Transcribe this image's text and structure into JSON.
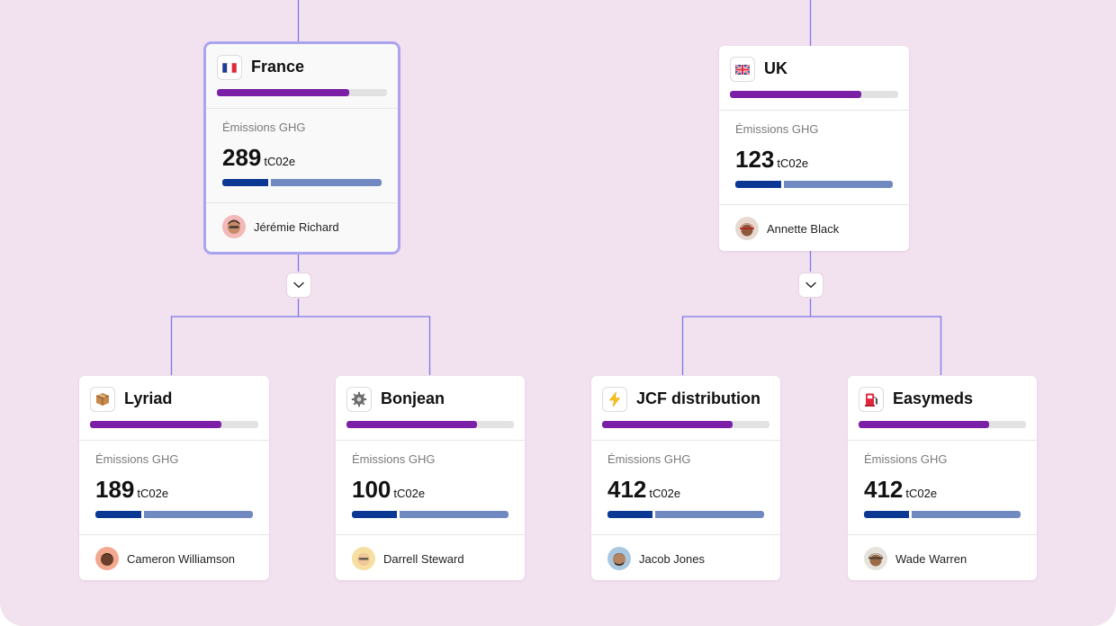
{
  "colors": {
    "background": "#f2e1ef",
    "connector": "#7b78e8",
    "progress_fill": "#7b1fa6",
    "progress_track": "#e2e2e2",
    "split_dark": "#0b3893",
    "split_light": "#7089c0",
    "selected_border": "#aaa3ef"
  },
  "metric_label": "Émissions GHG",
  "cards": [
    {
      "id": "france",
      "name": "France",
      "icon": "france-flag-icon",
      "progress": 0.78,
      "value": "289",
      "unit": "tC02e",
      "split": 0.29,
      "owner": "Jérémie Richard",
      "selected": true
    },
    {
      "id": "uk",
      "name": "UK",
      "icon": "uk-flag-icon",
      "progress": 0.78,
      "value": "123",
      "unit": "tC02e",
      "split": 0.29,
      "owner": "Annette Black",
      "selected": false
    },
    {
      "id": "lyriad",
      "name": "Lyriad",
      "icon": "package-icon",
      "progress": 0.78,
      "value": "189",
      "unit": "tC02e",
      "split": 0.29,
      "owner": "Cameron Williamson",
      "selected": false
    },
    {
      "id": "bonjean",
      "name": "Bonjean",
      "icon": "gear-icon",
      "progress": 0.78,
      "value": "100",
      "unit": "tC02e",
      "split": 0.29,
      "owner": "Darrell Steward",
      "selected": false
    },
    {
      "id": "jcf",
      "name": "JCF distribution",
      "icon": "lightning-icon",
      "progress": 0.78,
      "value": "412",
      "unit": "tC02e",
      "split": 0.29,
      "owner": "Jacob Jones",
      "selected": false
    },
    {
      "id": "easymeds",
      "name": "Easymeds",
      "icon": "fuel-pump-icon",
      "progress": 0.78,
      "value": "412",
      "unit": "tC02e",
      "split": 0.29,
      "owner": "Wade Warren",
      "selected": false
    }
  ]
}
